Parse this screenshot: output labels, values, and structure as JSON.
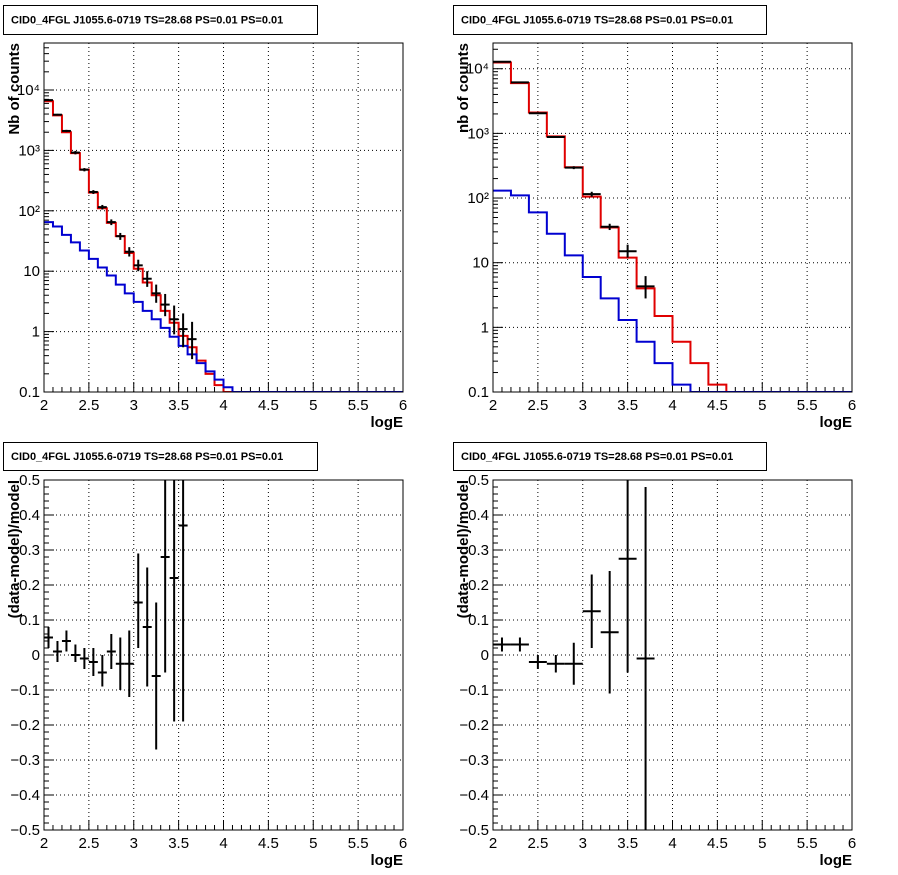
{
  "canvas": {
    "background": "#ffffff"
  },
  "colors": {
    "data": "#000000",
    "total_model": "#e00000",
    "component": "#0000d0",
    "grid": "#000000"
  },
  "panels": [
    {
      "title": "CID0_4FGL J1055.6-0719 TS=28.68 PS=0.01 PS=0.01",
      "xlabel": "logE",
      "ylabel": "Nb of counts",
      "xticks": [
        "2",
        "2.5",
        "3",
        "3.5",
        "4",
        "4.5",
        "5",
        "5.5",
        "6"
      ],
      "yticks": [
        "0.1",
        "1",
        "10",
        "10²",
        "10³",
        "10⁴"
      ]
    },
    {
      "title": "CID0_4FGL J1055.6-0719 TS=28.68 PS=0.01 PS=0.01",
      "xlabel": "logE",
      "ylabel": "nb of counts",
      "xticks": [
        "2",
        "2.5",
        "3",
        "3.5",
        "4",
        "4.5",
        "5",
        "5.5",
        "6"
      ],
      "yticks": [
        "0.1",
        "1",
        "10",
        "10²",
        "10³",
        "10⁴"
      ]
    },
    {
      "title": "CID0_4FGL J1055.6-0719 TS=28.68 PS=0.01 PS=0.01",
      "xlabel": "logE",
      "ylabel": "(data-model)/model",
      "xticks": [
        "2",
        "2.5",
        "3",
        "3.5",
        "4",
        "4.5",
        "5",
        "5.5",
        "6"
      ],
      "yticks": [
        "−0.5",
        "−0.4",
        "−0.3",
        "−0.2",
        "−0.1",
        "0",
        "0.1",
        "0.2",
        "0.3",
        "0.4",
        "0.5"
      ]
    },
    {
      "title": "CID0_4FGL J1055.6-0719 TS=28.68 PS=0.01 PS=0.01",
      "xlabel": "logE",
      "ylabel": "(data-model)/model",
      "xticks": [
        "2",
        "2.5",
        "3",
        "3.5",
        "4",
        "4.5",
        "5",
        "5.5",
        "6"
      ],
      "yticks": [
        "−0.5",
        "−0.4",
        "−0.3",
        "−0.2",
        "−0.1",
        "0",
        "0.1",
        "0.2",
        "0.3",
        "0.4",
        "0.5"
      ]
    }
  ],
  "chart_data": [
    {
      "type": "line",
      "title": "CID0_4FGL J1055.6-0719 TS=28.68 PS=0.01 PS=0.01",
      "xlabel": "logE",
      "ylabel": "Nb of counts",
      "xlim": [
        2,
        6
      ],
      "ylim": [
        0.1,
        60000
      ],
      "yscale": "log",
      "grid": true,
      "bin_edges": [
        2.0,
        2.1,
        2.2,
        2.3,
        2.4,
        2.5,
        2.6,
        2.7,
        2.8,
        2.9,
        3.0,
        3.1,
        3.2,
        3.3,
        3.4,
        3.5,
        3.6,
        3.7,
        3.8,
        3.9,
        4.0,
        4.1,
        4.2,
        4.3,
        4.4,
        4.5,
        4.6,
        4.7,
        4.8,
        4.9,
        5.0,
        5.1,
        5.2,
        5.3,
        5.4,
        5.5,
        5.6,
        5.7,
        5.8,
        5.9,
        6.0
      ],
      "series": [
        {
          "style": "step",
          "color": "#e00000",
          "values": [
            6500,
            3800,
            2000,
            900,
            480,
            200,
            110,
            63,
            38,
            20,
            11,
            6.5,
            4.0,
            2.2,
            1.4,
            0.85,
            0.55,
            0.33,
            0.2,
            0.13,
            0.1,
            0.1,
            0.1,
            0.1,
            0.1,
            0.1,
            0.1,
            0.1,
            0.1,
            0.1,
            0.1,
            0.1,
            0.1,
            0.1,
            0.1,
            0.1,
            0.1,
            0.1,
            0.1,
            0.1
          ]
        },
        {
          "style": "step",
          "color": "#0000d0",
          "values": [
            65,
            55,
            40,
            30,
            22,
            16,
            11.5,
            8.5,
            6,
            4.3,
            3.1,
            2.2,
            1.6,
            1.15,
            0.82,
            0.58,
            0.42,
            0.3,
            0.22,
            0.16,
            0.12,
            0.1,
            0.1,
            0.1,
            0.1,
            0.1,
            0.1,
            0.1,
            0.1,
            0.1,
            0.1,
            0.1,
            0.1,
            0.1,
            0.1,
            0.1,
            0.1,
            0.1,
            0.1,
            0.1
          ]
        },
        {
          "style": "errorbar",
          "color": "#000000",
          "x": [
            2.05,
            2.15,
            2.25,
            2.35,
            2.45,
            2.55,
            2.65,
            2.75,
            2.85,
            2.95,
            3.05,
            3.15,
            3.25,
            3.35,
            3.45,
            3.55,
            3.65
          ],
          "y": [
            6800,
            3900,
            2100,
            920,
            480,
            205,
            115,
            65,
            38,
            21,
            12.5,
            7.5,
            4.3,
            2.8,
            1.6,
            1.1,
            0.75
          ],
          "ylo": [
            6650,
            3780,
            2010,
            860,
            450,
            190,
            105,
            58,
            33,
            17.5,
            10,
            5.5,
            3.0,
            1.8,
            0.9,
            0.55,
            0.35
          ],
          "yhi": [
            6950,
            4020,
            2190,
            980,
            510,
            220,
            125,
            72,
            43,
            25,
            15.5,
            10,
            6.0,
            4.2,
            2.7,
            2.0,
            1.45
          ]
        }
      ]
    },
    {
      "type": "line",
      "title": "CID0_4FGL J1055.6-0719 TS=28.68 PS=0.01 PS=0.01",
      "xlabel": "logE",
      "ylabel": "nb of counts",
      "xlim": [
        2,
        6
      ],
      "ylim": [
        0.1,
        25000
      ],
      "yscale": "log",
      "grid": true,
      "bin_edges": [
        2.0,
        2.2,
        2.4,
        2.6,
        2.8,
        3.0,
        3.2,
        3.4,
        3.6,
        3.8,
        4.0,
        4.2,
        4.4,
        4.6,
        4.8,
        5.0,
        5.2,
        5.4,
        5.6,
        5.8,
        6.0
      ],
      "series": [
        {
          "style": "step",
          "color": "#e00000",
          "values": [
            12500,
            6000,
            2100,
            900,
            300,
            105,
            35,
            12,
            4,
            1.5,
            0.6,
            0.28,
            0.13,
            0.1,
            0.1,
            0.1,
            0.1,
            0.1,
            0.1,
            0.1
          ]
        },
        {
          "style": "step",
          "color": "#0000d0",
          "values": [
            130,
            110,
            60,
            28,
            13,
            6,
            2.8,
            1.3,
            0.6,
            0.28,
            0.13,
            0.1,
            0.1,
            0.1,
            0.1,
            0.1,
            0.1,
            0.1,
            0.1,
            0.1
          ]
        },
        {
          "style": "errorbar",
          "color": "#000000",
          "x": [
            2.1,
            2.3,
            2.5,
            2.7,
            2.9,
            3.1,
            3.3,
            3.5,
            3.7
          ],
          "y": [
            12800,
            6150,
            2050,
            880,
            295,
            115,
            36,
            15,
            4.3
          ],
          "ylo": [
            12600,
            6050,
            1990,
            850,
            280,
            105,
            32,
            12,
            2.8
          ],
          "yhi": [
            13000,
            6250,
            2110,
            910,
            310,
            125,
            40,
            19,
            6.2
          ]
        }
      ]
    },
    {
      "type": "scatter",
      "title": "CID0_4FGL J1055.6-0719 TS=28.68 PS=0.01 PS=0.01",
      "xlabel": "logE",
      "ylabel": "(data-model)/model",
      "xlim": [
        2,
        6
      ],
      "ylim": [
        -0.5,
        0.5
      ],
      "grid": true,
      "series": [
        {
          "style": "errorbar",
          "color": "#000000",
          "x": [
            2.05,
            2.15,
            2.25,
            2.35,
            2.45,
            2.55,
            2.65,
            2.75,
            2.85,
            2.95,
            3.05,
            3.15,
            3.25,
            3.35,
            3.45,
            3.55
          ],
          "y": [
            0.05,
            0.01,
            0.04,
            0.0,
            -0.01,
            -0.02,
            -0.05,
            0.01,
            -0.025,
            -0.025,
            0.15,
            0.08,
            -0.06,
            0.28,
            0.22,
            0.37
          ],
          "ylo": [
            0.02,
            -0.02,
            0.01,
            -0.02,
            -0.04,
            -0.06,
            -0.09,
            -0.04,
            -0.1,
            -0.12,
            0.02,
            -0.09,
            -0.27,
            -0.05,
            -0.19,
            -0.19
          ],
          "yhi": [
            0.08,
            0.04,
            0.07,
            0.03,
            0.02,
            0.02,
            0.0,
            0.06,
            0.05,
            0.07,
            0.29,
            0.25,
            0.15,
            0.61,
            0.63,
            0.93
          ]
        }
      ]
    },
    {
      "type": "scatter",
      "title": "CID0_4FGL J1055.6-0719 TS=28.68 PS=0.01 PS=0.01",
      "xlabel": "logE",
      "ylabel": "(data-model)/model",
      "xlim": [
        2,
        6
      ],
      "ylim": [
        -0.5,
        0.5
      ],
      "grid": true,
      "series": [
        {
          "style": "errorbar",
          "color": "#000000",
          "x": [
            2.1,
            2.3,
            2.5,
            2.7,
            2.9,
            3.1,
            3.3,
            3.5,
            3.7
          ],
          "y": [
            0.03,
            0.03,
            -0.02,
            -0.025,
            -0.025,
            0.125,
            0.065,
            0.275,
            -0.01
          ],
          "ylo": [
            0.01,
            0.01,
            -0.04,
            -0.05,
            -0.085,
            0.02,
            -0.11,
            -0.05,
            -0.5
          ],
          "yhi": [
            0.05,
            0.05,
            0.0,
            0.0,
            0.035,
            0.23,
            0.24,
            0.5,
            0.48
          ]
        }
      ]
    }
  ]
}
